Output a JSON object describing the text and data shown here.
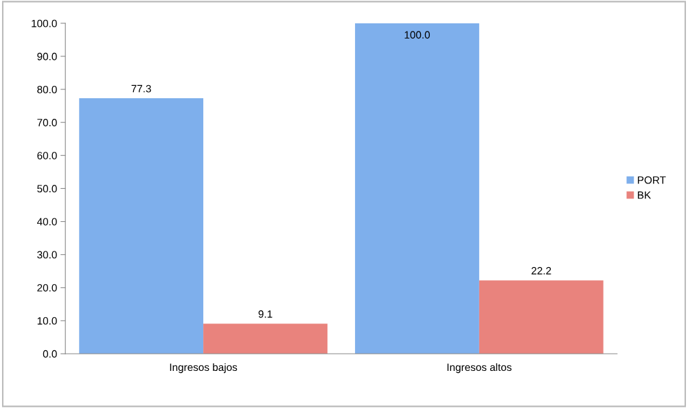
{
  "chart_data": {
    "type": "bar",
    "categories": [
      "Ingresos bajos",
      "Ingresos altos"
    ],
    "series": [
      {
        "name": "PORT",
        "color": "#7eafec",
        "values": [
          77.3,
          100.0
        ],
        "value_labels": [
          "77.3",
          "100.0"
        ]
      },
      {
        "name": "BK",
        "color": "#e9837d",
        "values": [
          9.1,
          22.2
        ],
        "value_labels": [
          "9.1",
          "22.2"
        ]
      }
    ],
    "ylim": [
      0,
      100
    ],
    "yticks": [
      {
        "value": 0,
        "label": "0.0"
      },
      {
        "value": 10,
        "label": "10.0"
      },
      {
        "value": 20,
        "label": "20.0"
      },
      {
        "value": 30,
        "label": "30.0"
      },
      {
        "value": 40,
        "label": "40.0"
      },
      {
        "value": 50,
        "label": "50.0"
      },
      {
        "value": 60,
        "label": "60.0"
      },
      {
        "value": 70,
        "label": "70.0"
      },
      {
        "value": 80,
        "label": "80.0"
      },
      {
        "value": 90,
        "label": "90.0"
      },
      {
        "value": 100,
        "label": "100.0"
      }
    ],
    "grid": false,
    "legend": "right"
  }
}
